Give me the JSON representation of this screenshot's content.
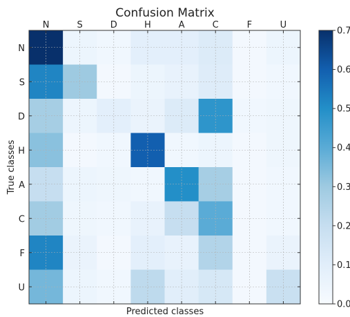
{
  "chart_data": {
    "type": "heatmap",
    "title": "Confusion Matrix",
    "xlabel": "Predicted classes",
    "ylabel": "True classes",
    "x_categories": [
      "N",
      "S",
      "D",
      "H",
      "A",
      "C",
      "F",
      "U"
    ],
    "y_categories": [
      "N",
      "S",
      "D",
      "H",
      "A",
      "C",
      "F",
      "U"
    ],
    "values": [
      [
        0.7,
        0.05,
        0.03,
        0.09,
        0.09,
        0.12,
        0.02,
        0.05
      ],
      [
        0.52,
        0.3,
        0.02,
        0.05,
        0.07,
        0.11,
        0.02,
        0.03
      ],
      [
        0.28,
        0.05,
        0.09,
        0.06,
        0.12,
        0.48,
        0.03,
        0.04
      ],
      [
        0.33,
        0.02,
        0.03,
        0.6,
        0.03,
        0.05,
        0.02,
        0.04
      ],
      [
        0.2,
        0.05,
        0.04,
        0.03,
        0.5,
        0.28,
        0.02,
        0.03
      ],
      [
        0.29,
        0.04,
        0.03,
        0.07,
        0.2,
        0.4,
        0.02,
        0.03
      ],
      [
        0.52,
        0.06,
        0.02,
        0.09,
        0.07,
        0.25,
        0.02,
        0.06
      ],
      [
        0.36,
        0.05,
        0.03,
        0.22,
        0.1,
        0.14,
        0.02,
        0.19
      ]
    ],
    "colorscale": "Blues",
    "colorbar": {
      "min": 0.0,
      "max": 0.7,
      "ticks": [
        "0.0",
        "0.1",
        "0.2",
        "0.3",
        "0.4",
        "0.5",
        "0.6",
        "0.7"
      ]
    },
    "grid": true,
    "colors": {
      "low": "#f7fbff",
      "mid": "#3a9fd1",
      "high": "#08306b"
    }
  }
}
